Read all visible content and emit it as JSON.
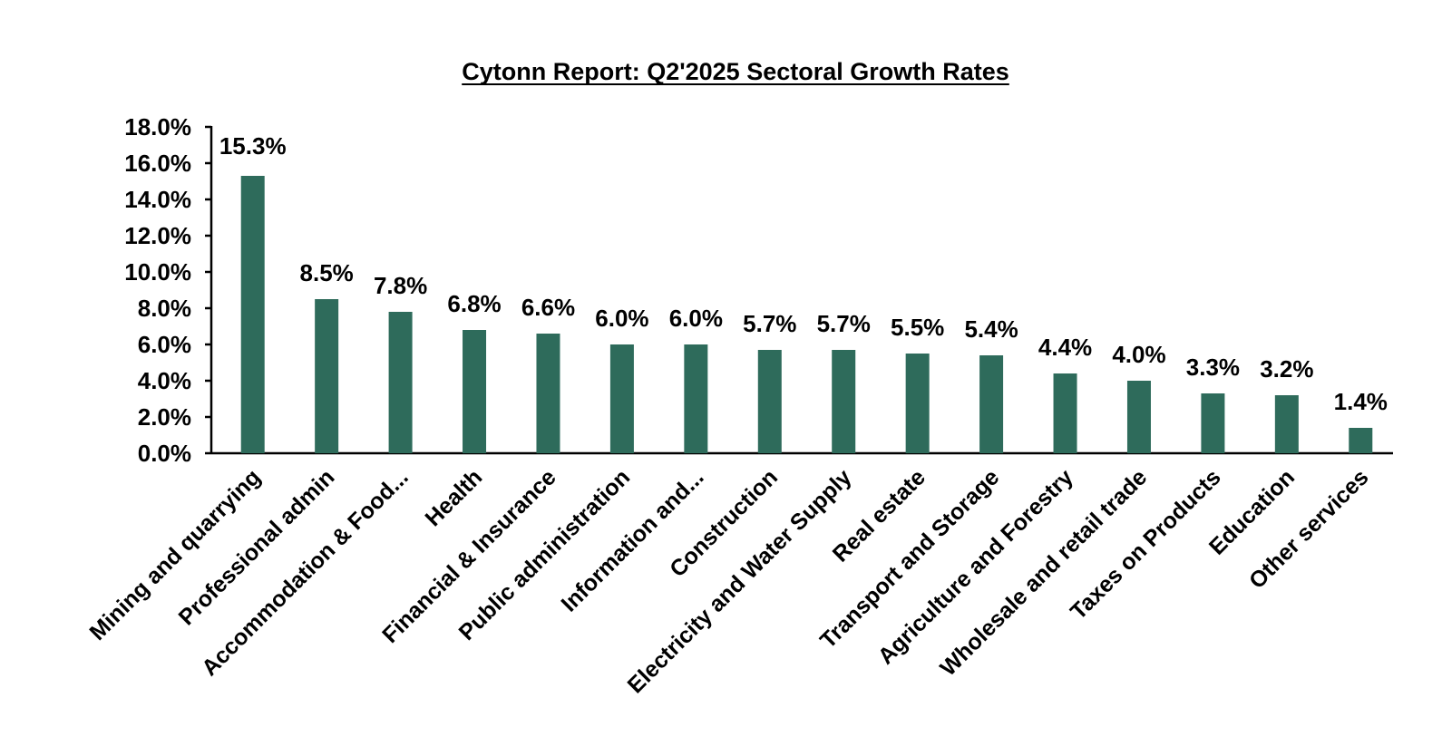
{
  "chart_data": {
    "type": "bar",
    "title": "Cytonn Report: Q2'2025 Sectoral Growth Rates",
    "xlabel": "",
    "ylabel": "",
    "ylim": [
      0,
      18
    ],
    "yticks": [
      0,
      2,
      4,
      6,
      8,
      10,
      12,
      14,
      16,
      18
    ],
    "ytick_labels": [
      "0.0%",
      "2.0%",
      "4.0%",
      "6.0%",
      "8.0%",
      "10.0%",
      "12.0%",
      "14.0%",
      "16.0%",
      "18.0%"
    ],
    "grid": false,
    "legend": "none",
    "bar_color": "#2E6B5B",
    "categories": [
      "Mining and quarrying",
      "Professional admin",
      "Accommodation & Food...",
      "Health",
      "Financial & Insurance",
      "Public administration",
      "Information and...",
      "Construction",
      "Electricity and Water Supply",
      "Real estate",
      "Transport and Storage",
      "Agriculture and Forestry",
      "Wholesale and retail trade",
      "Taxes on Products",
      "Education",
      "Other services"
    ],
    "values": [
      15.3,
      8.5,
      7.8,
      6.8,
      6.6,
      6.0,
      6.0,
      5.7,
      5.7,
      5.5,
      5.4,
      4.4,
      4.0,
      3.3,
      3.2,
      1.4
    ],
    "data_labels": [
      "15.3%",
      "8.5%",
      "7.8%",
      "6.8%",
      "6.6%",
      "6.0%",
      "6.0%",
      "5.7%",
      "5.7%",
      "5.5%",
      "5.4%",
      "4.4%",
      "4.0%",
      "3.3%",
      "3.2%",
      "1.4%"
    ]
  }
}
